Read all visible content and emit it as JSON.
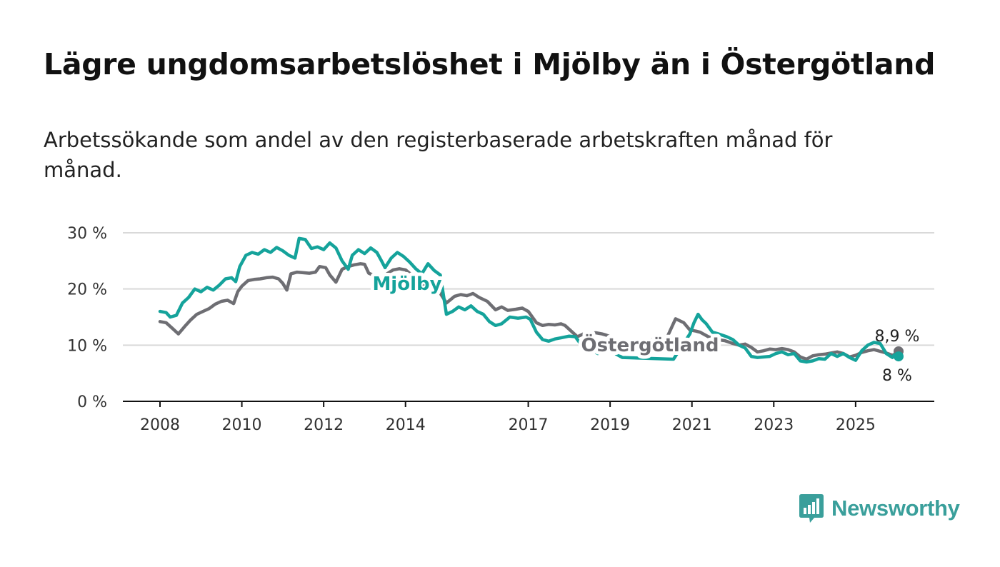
{
  "title": "Lägre ungdomsarbetslöshet i Mjölby än i Östergötland",
  "subtitle": "Arbetssökande som andel av den registerbaserade arbetskraften månad för månad.",
  "brand": {
    "name": "Newsworthy",
    "color": "#3a9f9b",
    "icon": "newsworthy-logo-icon"
  },
  "chart_data": {
    "type": "line",
    "y_axis": {
      "min": 0,
      "max": 30,
      "ticks": [
        0,
        10,
        20,
        30
      ],
      "tick_labels": [
        "0 %",
        "10 %",
        "20 %",
        "30 %"
      ]
    },
    "x_axis": {
      "min": 2008.0,
      "max": 2026.4,
      "ticks": [
        2008,
        2010,
        2012,
        2014,
        2017,
        2019,
        2021,
        2023,
        2025
      ],
      "tick_labels": [
        "2008",
        "2010",
        "2012",
        "2014",
        "2017",
        "2019",
        "2021",
        "2023",
        "2025"
      ]
    },
    "grid": true,
    "series": [
      {
        "name": "Östergötland",
        "color": "#6e6e73",
        "end_label": "8,9 %",
        "points": [
          [
            2008.0,
            14.2
          ],
          [
            2008.15,
            14.0
          ],
          [
            2008.3,
            13.0
          ],
          [
            2008.45,
            12.0
          ],
          [
            2008.6,
            13.3
          ],
          [
            2008.75,
            14.5
          ],
          [
            2008.9,
            15.5
          ],
          [
            2009.05,
            16.0
          ],
          [
            2009.2,
            16.5
          ],
          [
            2009.35,
            17.3
          ],
          [
            2009.5,
            17.8
          ],
          [
            2009.65,
            18.0
          ],
          [
            2009.8,
            17.4
          ],
          [
            2009.9,
            19.5
          ],
          [
            2010.0,
            20.5
          ],
          [
            2010.15,
            21.5
          ],
          [
            2010.3,
            21.7
          ],
          [
            2010.45,
            21.8
          ],
          [
            2010.6,
            22.0
          ],
          [
            2010.75,
            22.1
          ],
          [
            2010.9,
            21.8
          ],
          [
            2011.0,
            21.0
          ],
          [
            2011.1,
            19.8
          ],
          [
            2011.2,
            22.7
          ],
          [
            2011.35,
            23.0
          ],
          [
            2011.5,
            22.9
          ],
          [
            2011.65,
            22.8
          ],
          [
            2011.8,
            23.0
          ],
          [
            2011.9,
            24.0
          ],
          [
            2012.05,
            23.8
          ],
          [
            2012.15,
            22.5
          ],
          [
            2012.3,
            21.2
          ],
          [
            2012.45,
            23.5
          ],
          [
            2012.6,
            24.0
          ],
          [
            2012.75,
            24.3
          ],
          [
            2012.9,
            24.5
          ],
          [
            2013.0,
            24.4
          ],
          [
            2013.1,
            22.8
          ],
          [
            2013.2,
            22.5
          ],
          [
            2013.35,
            21.8
          ],
          [
            2013.45,
            20.6
          ],
          [
            2013.55,
            22.7
          ],
          [
            2013.7,
            23.4
          ],
          [
            2013.85,
            23.6
          ],
          [
            2014.0,
            23.4
          ],
          [
            2014.1,
            22.8
          ],
          [
            2014.25,
            21.8
          ],
          [
            2014.4,
            20.3
          ],
          [
            2014.5,
            20.8
          ],
          [
            2014.65,
            20.5
          ],
          [
            2014.8,
            19.8
          ],
          [
            2015.0,
            17.5
          ],
          [
            2015.2,
            18.7
          ],
          [
            2015.35,
            19.0
          ],
          [
            2015.5,
            18.8
          ],
          [
            2015.65,
            19.2
          ],
          [
            2015.8,
            18.5
          ],
          [
            2016.0,
            17.8
          ],
          [
            2016.2,
            16.3
          ],
          [
            2016.35,
            16.8
          ],
          [
            2016.5,
            16.2
          ],
          [
            2016.7,
            16.4
          ],
          [
            2016.85,
            16.6
          ],
          [
            2017.0,
            16.0
          ],
          [
            2017.2,
            14.0
          ],
          [
            2017.35,
            13.5
          ],
          [
            2017.5,
            13.7
          ],
          [
            2017.65,
            13.6
          ],
          [
            2017.8,
            13.8
          ],
          [
            2017.9,
            13.5
          ],
          [
            2018.05,
            12.5
          ],
          [
            2018.2,
            11.5
          ],
          [
            2018.35,
            12.0
          ],
          [
            2018.5,
            12.1
          ],
          [
            2018.65,
            12.2
          ],
          [
            2018.8,
            12.0
          ],
          [
            2018.9,
            11.8
          ],
          [
            2019.0,
            11.5
          ],
          [
            2019.25,
            10.5
          ],
          [
            2020.0,
            11.0
          ],
          [
            2020.4,
            11.5
          ],
          [
            2020.6,
            14.7
          ],
          [
            2020.8,
            14.0
          ],
          [
            2020.95,
            12.7
          ],
          [
            2021.1,
            12.5
          ],
          [
            2021.2,
            12.3
          ],
          [
            2021.4,
            11.5
          ],
          [
            2021.6,
            11.0
          ],
          [
            2021.8,
            10.8
          ],
          [
            2022.0,
            10.3
          ],
          [
            2022.15,
            10.0
          ],
          [
            2022.3,
            10.2
          ],
          [
            2022.45,
            9.6
          ],
          [
            2022.6,
            8.8
          ],
          [
            2022.75,
            9.0
          ],
          [
            2022.9,
            9.3
          ],
          [
            2023.05,
            9.2
          ],
          [
            2023.2,
            9.4
          ],
          [
            2023.35,
            9.2
          ],
          [
            2023.5,
            8.8
          ],
          [
            2023.65,
            7.9
          ],
          [
            2023.8,
            7.5
          ],
          [
            2023.95,
            8.1
          ],
          [
            2024.1,
            8.3
          ],
          [
            2024.25,
            8.4
          ],
          [
            2024.4,
            8.6
          ],
          [
            2024.55,
            8.8
          ],
          [
            2024.7,
            8.5
          ],
          [
            2024.85,
            7.9
          ],
          [
            2025.0,
            8.2
          ],
          [
            2025.15,
            8.7
          ],
          [
            2025.3,
            9.0
          ],
          [
            2025.45,
            9.2
          ],
          [
            2025.6,
            8.9
          ],
          [
            2025.75,
            8.6
          ],
          [
            2025.9,
            8.2
          ],
          [
            2026.0,
            8.5
          ],
          [
            2026.05,
            8.9
          ]
        ]
      },
      {
        "name": "Mjölby",
        "color": "#15a39b",
        "end_label": "8 %",
        "points": [
          [
            2008.0,
            16.0
          ],
          [
            2008.15,
            15.8
          ],
          [
            2008.25,
            15.0
          ],
          [
            2008.4,
            15.3
          ],
          [
            2008.55,
            17.5
          ],
          [
            2008.7,
            18.5
          ],
          [
            2008.85,
            20.0
          ],
          [
            2009.0,
            19.5
          ],
          [
            2009.15,
            20.3
          ],
          [
            2009.3,
            19.8
          ],
          [
            2009.45,
            20.7
          ],
          [
            2009.6,
            21.8
          ],
          [
            2009.75,
            22.0
          ],
          [
            2009.85,
            21.3
          ],
          [
            2009.95,
            24.0
          ],
          [
            2010.1,
            26.0
          ],
          [
            2010.25,
            26.5
          ],
          [
            2010.4,
            26.2
          ],
          [
            2010.55,
            27.0
          ],
          [
            2010.7,
            26.5
          ],
          [
            2010.85,
            27.4
          ],
          [
            2011.0,
            26.8
          ],
          [
            2011.15,
            26.0
          ],
          [
            2011.3,
            25.5
          ],
          [
            2011.4,
            29.0
          ],
          [
            2011.55,
            28.8
          ],
          [
            2011.7,
            27.2
          ],
          [
            2011.85,
            27.5
          ],
          [
            2012.0,
            27.0
          ],
          [
            2012.15,
            28.2
          ],
          [
            2012.3,
            27.3
          ],
          [
            2012.45,
            25.0
          ],
          [
            2012.6,
            23.5
          ],
          [
            2012.7,
            26.0
          ],
          [
            2012.85,
            27.0
          ],
          [
            2013.0,
            26.3
          ],
          [
            2013.15,
            27.3
          ],
          [
            2013.3,
            26.5
          ],
          [
            2013.4,
            25.2
          ],
          [
            2013.5,
            23.8
          ],
          [
            2013.65,
            25.5
          ],
          [
            2013.8,
            26.5
          ],
          [
            2013.95,
            25.8
          ],
          [
            2014.1,
            24.8
          ],
          [
            2014.25,
            23.6
          ],
          [
            2014.4,
            22.7
          ],
          [
            2014.55,
            24.5
          ],
          [
            2014.7,
            23.3
          ],
          [
            2014.85,
            22.5
          ],
          [
            2015.0,
            15.5
          ],
          [
            2015.15,
            16.0
          ],
          [
            2015.3,
            16.8
          ],
          [
            2015.45,
            16.3
          ],
          [
            2015.6,
            17.0
          ],
          [
            2015.75,
            16.0
          ],
          [
            2015.9,
            15.5
          ],
          [
            2016.05,
            14.2
          ],
          [
            2016.2,
            13.5
          ],
          [
            2016.35,
            13.8
          ],
          [
            2016.55,
            15.0
          ],
          [
            2016.75,
            14.8
          ],
          [
            2016.95,
            15.0
          ],
          [
            2017.05,
            14.6
          ],
          [
            2017.2,
            12.3
          ],
          [
            2017.35,
            11.0
          ],
          [
            2017.5,
            10.7
          ],
          [
            2017.65,
            11.1
          ],
          [
            2017.8,
            11.3
          ],
          [
            2018.0,
            11.6
          ],
          [
            2018.15,
            11.5
          ],
          [
            2018.25,
            10.5
          ],
          [
            2018.4,
            9.5
          ],
          [
            2018.55,
            9.2
          ],
          [
            2018.7,
            8.5
          ],
          [
            2018.85,
            9.3
          ],
          [
            2019.0,
            9.5
          ],
          [
            2019.15,
            8.4
          ],
          [
            2019.3,
            7.8
          ],
          [
            2020.55,
            7.5
          ],
          [
            2020.95,
            12.0
          ],
          [
            2021.05,
            14.0
          ],
          [
            2021.15,
            15.5
          ],
          [
            2021.25,
            14.5
          ],
          [
            2021.35,
            13.8
          ],
          [
            2021.5,
            12.3
          ],
          [
            2021.65,
            12.0
          ],
          [
            2021.85,
            11.5
          ],
          [
            2022.0,
            11.0
          ],
          [
            2022.15,
            10.0
          ],
          [
            2022.3,
            9.5
          ],
          [
            2022.45,
            8.0
          ],
          [
            2022.6,
            7.8
          ],
          [
            2022.75,
            7.9
          ],
          [
            2022.9,
            8.0
          ],
          [
            2023.05,
            8.5
          ],
          [
            2023.2,
            8.8
          ],
          [
            2023.35,
            8.3
          ],
          [
            2023.5,
            8.5
          ],
          [
            2023.65,
            7.2
          ],
          [
            2023.8,
            7.0
          ],
          [
            2023.95,
            7.2
          ],
          [
            2024.1,
            7.6
          ],
          [
            2024.25,
            7.5
          ],
          [
            2024.4,
            8.5
          ],
          [
            2024.55,
            8.0
          ],
          [
            2024.7,
            8.5
          ],
          [
            2024.85,
            7.8
          ],
          [
            2025.0,
            7.3
          ],
          [
            2025.15,
            9.0
          ],
          [
            2025.3,
            10.0
          ],
          [
            2025.45,
            10.5
          ],
          [
            2025.6,
            10.3
          ],
          [
            2025.75,
            8.5
          ],
          [
            2025.9,
            7.8
          ],
          [
            2026.0,
            8.8
          ],
          [
            2026.05,
            8.0
          ]
        ]
      }
    ]
  }
}
